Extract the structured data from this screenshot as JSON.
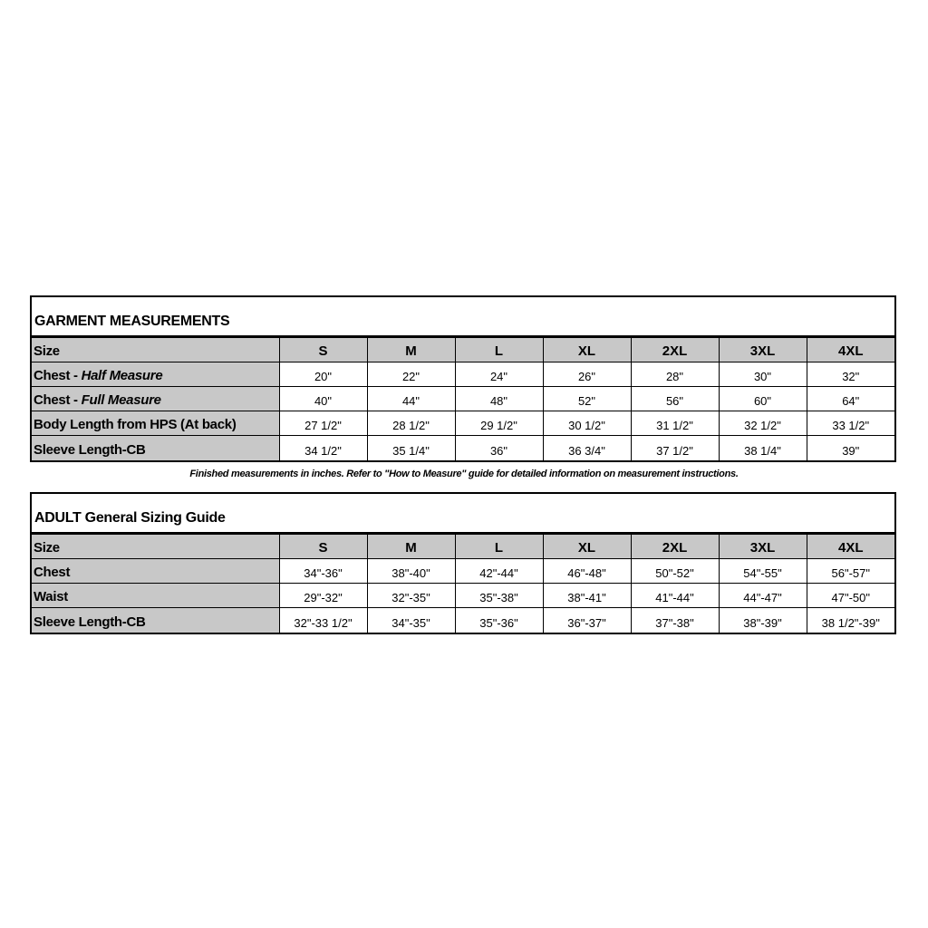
{
  "garment": {
    "title": "GARMENT MEASUREMENTS",
    "header": [
      "Size",
      "S",
      "M",
      "L",
      "XL",
      "2XL",
      "3XL",
      "4XL"
    ],
    "rows": [
      {
        "label": "Chest - ",
        "label_italic": "Half Measure",
        "values": [
          "20\"",
          "22\"",
          "24\"",
          "26\"",
          "28\"",
          "30\"",
          "32\""
        ]
      },
      {
        "label": "Chest - ",
        "label_italic": "Full Measure",
        "values": [
          "40\"",
          "44\"",
          "48\"",
          "52\"",
          "56\"",
          "60\"",
          "64\""
        ]
      },
      {
        "label": "Body Length from HPS (At back)",
        "values": [
          "27 1/2\"",
          "28 1/2\"",
          "29 1/2\"",
          "30 1/2\"",
          "31 1/2\"",
          "32 1/2\"",
          "33 1/2\""
        ]
      },
      {
        "label": "Sleeve Length-CB",
        "values": [
          "34 1/2\"",
          "35 1/4\"",
          "36\"",
          "36 3/4\"",
          "37 1/2\"",
          "38 1/4\"",
          "39\""
        ]
      }
    ]
  },
  "note": "Finished measurements in inches. Refer to \"How to Measure\" guide for detailed information on measurement instructions.",
  "adult": {
    "title": "ADULT General Sizing Guide",
    "header": [
      "Size",
      "S",
      "M",
      "L",
      "XL",
      "2XL",
      "3XL",
      "4XL"
    ],
    "rows": [
      {
        "label": "Chest",
        "values": [
          "34\"-36\"",
          "38\"-40\"",
          "42\"-44\"",
          "46\"-48\"",
          "50\"-52\"",
          "54\"-55\"",
          "56\"-57\""
        ]
      },
      {
        "label": "Waist",
        "values": [
          "29\"-32\"",
          "32\"-35\"",
          "35\"-38\"",
          "38\"-41\"",
          "41\"-44\"",
          "44\"-47\"",
          "47\"-50\""
        ]
      },
      {
        "label": "Sleeve Length-CB",
        "values": [
          "32\"-33 1/2\"",
          "34\"-35\"",
          "35\"-36\"",
          "36\"-37\"",
          "37\"-38\"",
          "38\"-39\"",
          "38 1/2\"-39\""
        ]
      }
    ]
  }
}
